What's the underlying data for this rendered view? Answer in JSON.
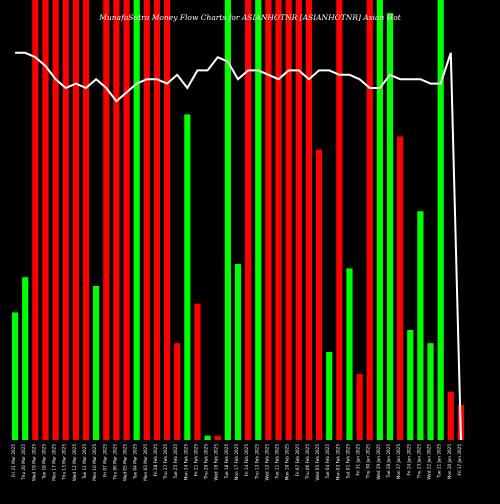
{
  "chart_data": {
    "type": "bar",
    "title": "MunafaSutra Money Flow Charts for ASIANHOTNR [ASIANHOTNR] Asian Hot",
    "xlabel": "",
    "ylabel": "",
    "grid": false,
    "legend": "none",
    "colors": {
      "up": "#00ff00",
      "down": "#ff0000",
      "line": "#ffffff",
      "background": "#000000"
    },
    "ylim": [
      0,
      100
    ],
    "categories": [
      "Fri 21 Mar 2025",
      "Thu 20 Mar 2025",
      "Wed 19 Mar 2025",
      "Tue 18 Mar 2025",
      "Mon 17 Mar 2025",
      "Thu 13 Mar 2025",
      "Wed 12 Mar 2025",
      "Tue 11 Mar 2025",
      "Mon 10 Mar 2025",
      "Fri 07 Mar 2025",
      "Thu 06 Mar 2025",
      "Wed 05 Mar 2025",
      "Tue 04 Mar 2025",
      "Mon 03 Mar 2025",
      "Fri 28 Feb 2025",
      "Thu 27 Feb 2025",
      "Tue 25 Feb 2025",
      "Mon 24 Feb 2025",
      "Fri 21 Feb 2025",
      "Thu 20 Feb 2025",
      "Wed 19 Feb 2025",
      "Tue 18 Feb 2025",
      "Mon 17 Feb 2025",
      "Fri 14 Feb 2025",
      "Thu 13 Feb 2025",
      "Wed 12 Feb 2025",
      "Tue 11 Feb 2025",
      "Mon 10 Feb 2025",
      "Fri 07 Feb 2025",
      "Thu 06 Feb 2025",
      "Wed 05 Feb 2025",
      "Tue 04 Feb 2025",
      "Mon 03 Feb 2025",
      "Sat 01 Feb 2025",
      "Fri 31 Jan 2025",
      "Thu 30 Jan 2025",
      "Wed 29 Jan 2025",
      "Tue 28 Jan 2025",
      "Mon 27 Jan 2025",
      "Fri 24 Jan 2025",
      "Thu 23 Jan 2025",
      "Wed 22 Jan 2025",
      "Tue 21 Jan 2025",
      "Mon 20 Jan 2025",
      "Fri 17 Jan 2025"
    ],
    "flow": [
      "green",
      "green",
      "red",
      "red",
      "red",
      "red",
      "red",
      "red",
      "green",
      "red",
      "red",
      "red",
      "green",
      "red",
      "red",
      "red",
      "red",
      "green",
      "red",
      "green",
      "red",
      "green",
      "green",
      "red",
      "green",
      "red",
      "red",
      "red",
      "red",
      "red",
      "red",
      "green",
      "red",
      "green",
      "red",
      "red",
      "green",
      "green",
      "red",
      "green",
      "green",
      "green",
      "green",
      "red",
      "red"
    ],
    "volume": [
      29,
      37,
      100,
      100,
      100,
      100,
      100,
      100,
      35,
      100,
      100,
      100,
      100,
      100,
      100,
      100,
      22,
      74,
      31,
      1,
      1,
      100,
      40,
      100,
      100,
      100,
      100,
      100,
      100,
      100,
      66,
      20,
      100,
      39,
      15,
      100,
      100,
      97,
      69,
      25,
      52,
      22,
      100,
      11,
      8
    ],
    "money_flow_line": [
      88,
      88,
      87,
      85,
      82,
      80,
      81,
      80,
      82,
      80,
      77,
      79,
      81,
      82,
      82,
      81,
      83,
      80,
      84,
      84,
      87,
      86,
      82,
      84,
      84,
      83,
      82,
      84,
      84,
      82,
      84,
      84,
      83,
      83,
      82,
      80,
      80,
      83,
      82,
      82,
      82,
      81,
      81,
      88,
      0
    ]
  }
}
